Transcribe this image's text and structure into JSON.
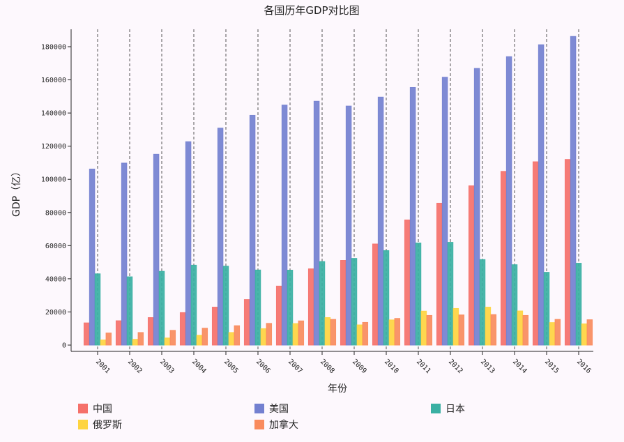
{
  "chart_data": {
    "type": "bar",
    "title": "各国历年GDP对比图",
    "xlabel": "年份",
    "ylabel": "GDP（亿）",
    "categories": [
      "2001",
      "2002",
      "2003",
      "2004",
      "2005",
      "2006",
      "2007",
      "2008",
      "2009",
      "2010",
      "2011",
      "2012",
      "2013",
      "2014",
      "2015",
      "2016"
    ],
    "ylim": [
      0,
      190000
    ],
    "yticks": [
      0,
      20000,
      40000,
      60000,
      80000,
      100000,
      120000,
      140000,
      160000,
      180000
    ],
    "vertical_gridlines": "dashed",
    "legend_position": "bottom",
    "series": [
      {
        "name": "中国",
        "color": "#f5706a",
        "values": [
          13400,
          14700,
          16600,
          19600,
          22900,
          27500,
          35600,
          46000,
          51100,
          61000,
          75500,
          85600,
          96100,
          104800,
          110600,
          112000
        ]
      },
      {
        "name": "美国",
        "color": "#7380d0",
        "values": [
          106200,
          109800,
          115100,
          122700,
          130900,
          138600,
          144800,
          147100,
          144200,
          149600,
          155400,
          161600,
          166900,
          174000,
          181200,
          186200
        ]
      },
      {
        "name": "日本",
        "color": "#3ab0a3",
        "values": [
          43000,
          41200,
          44500,
          48200,
          47600,
          45300,
          45200,
          50400,
          52300,
          57000,
          61600,
          62000,
          51600,
          48500,
          43900,
          49400
        ]
      },
      {
        "name": "俄罗斯",
        "color": "#fed440",
        "values": [
          3100,
          3500,
          4300,
          5900,
          7600,
          9900,
          13000,
          16600,
          12200,
          15200,
          20500,
          22100,
          22900,
          20600,
          13600,
          12800
        ]
      },
      {
        "name": "加拿大",
        "color": "#f98b5d",
        "values": [
          7300,
          7600,
          8900,
          10200,
          11700,
          13100,
          14600,
          15500,
          13700,
          16100,
          17900,
          18200,
          18400,
          17900,
          15500,
          15300
        ]
      }
    ]
  }
}
